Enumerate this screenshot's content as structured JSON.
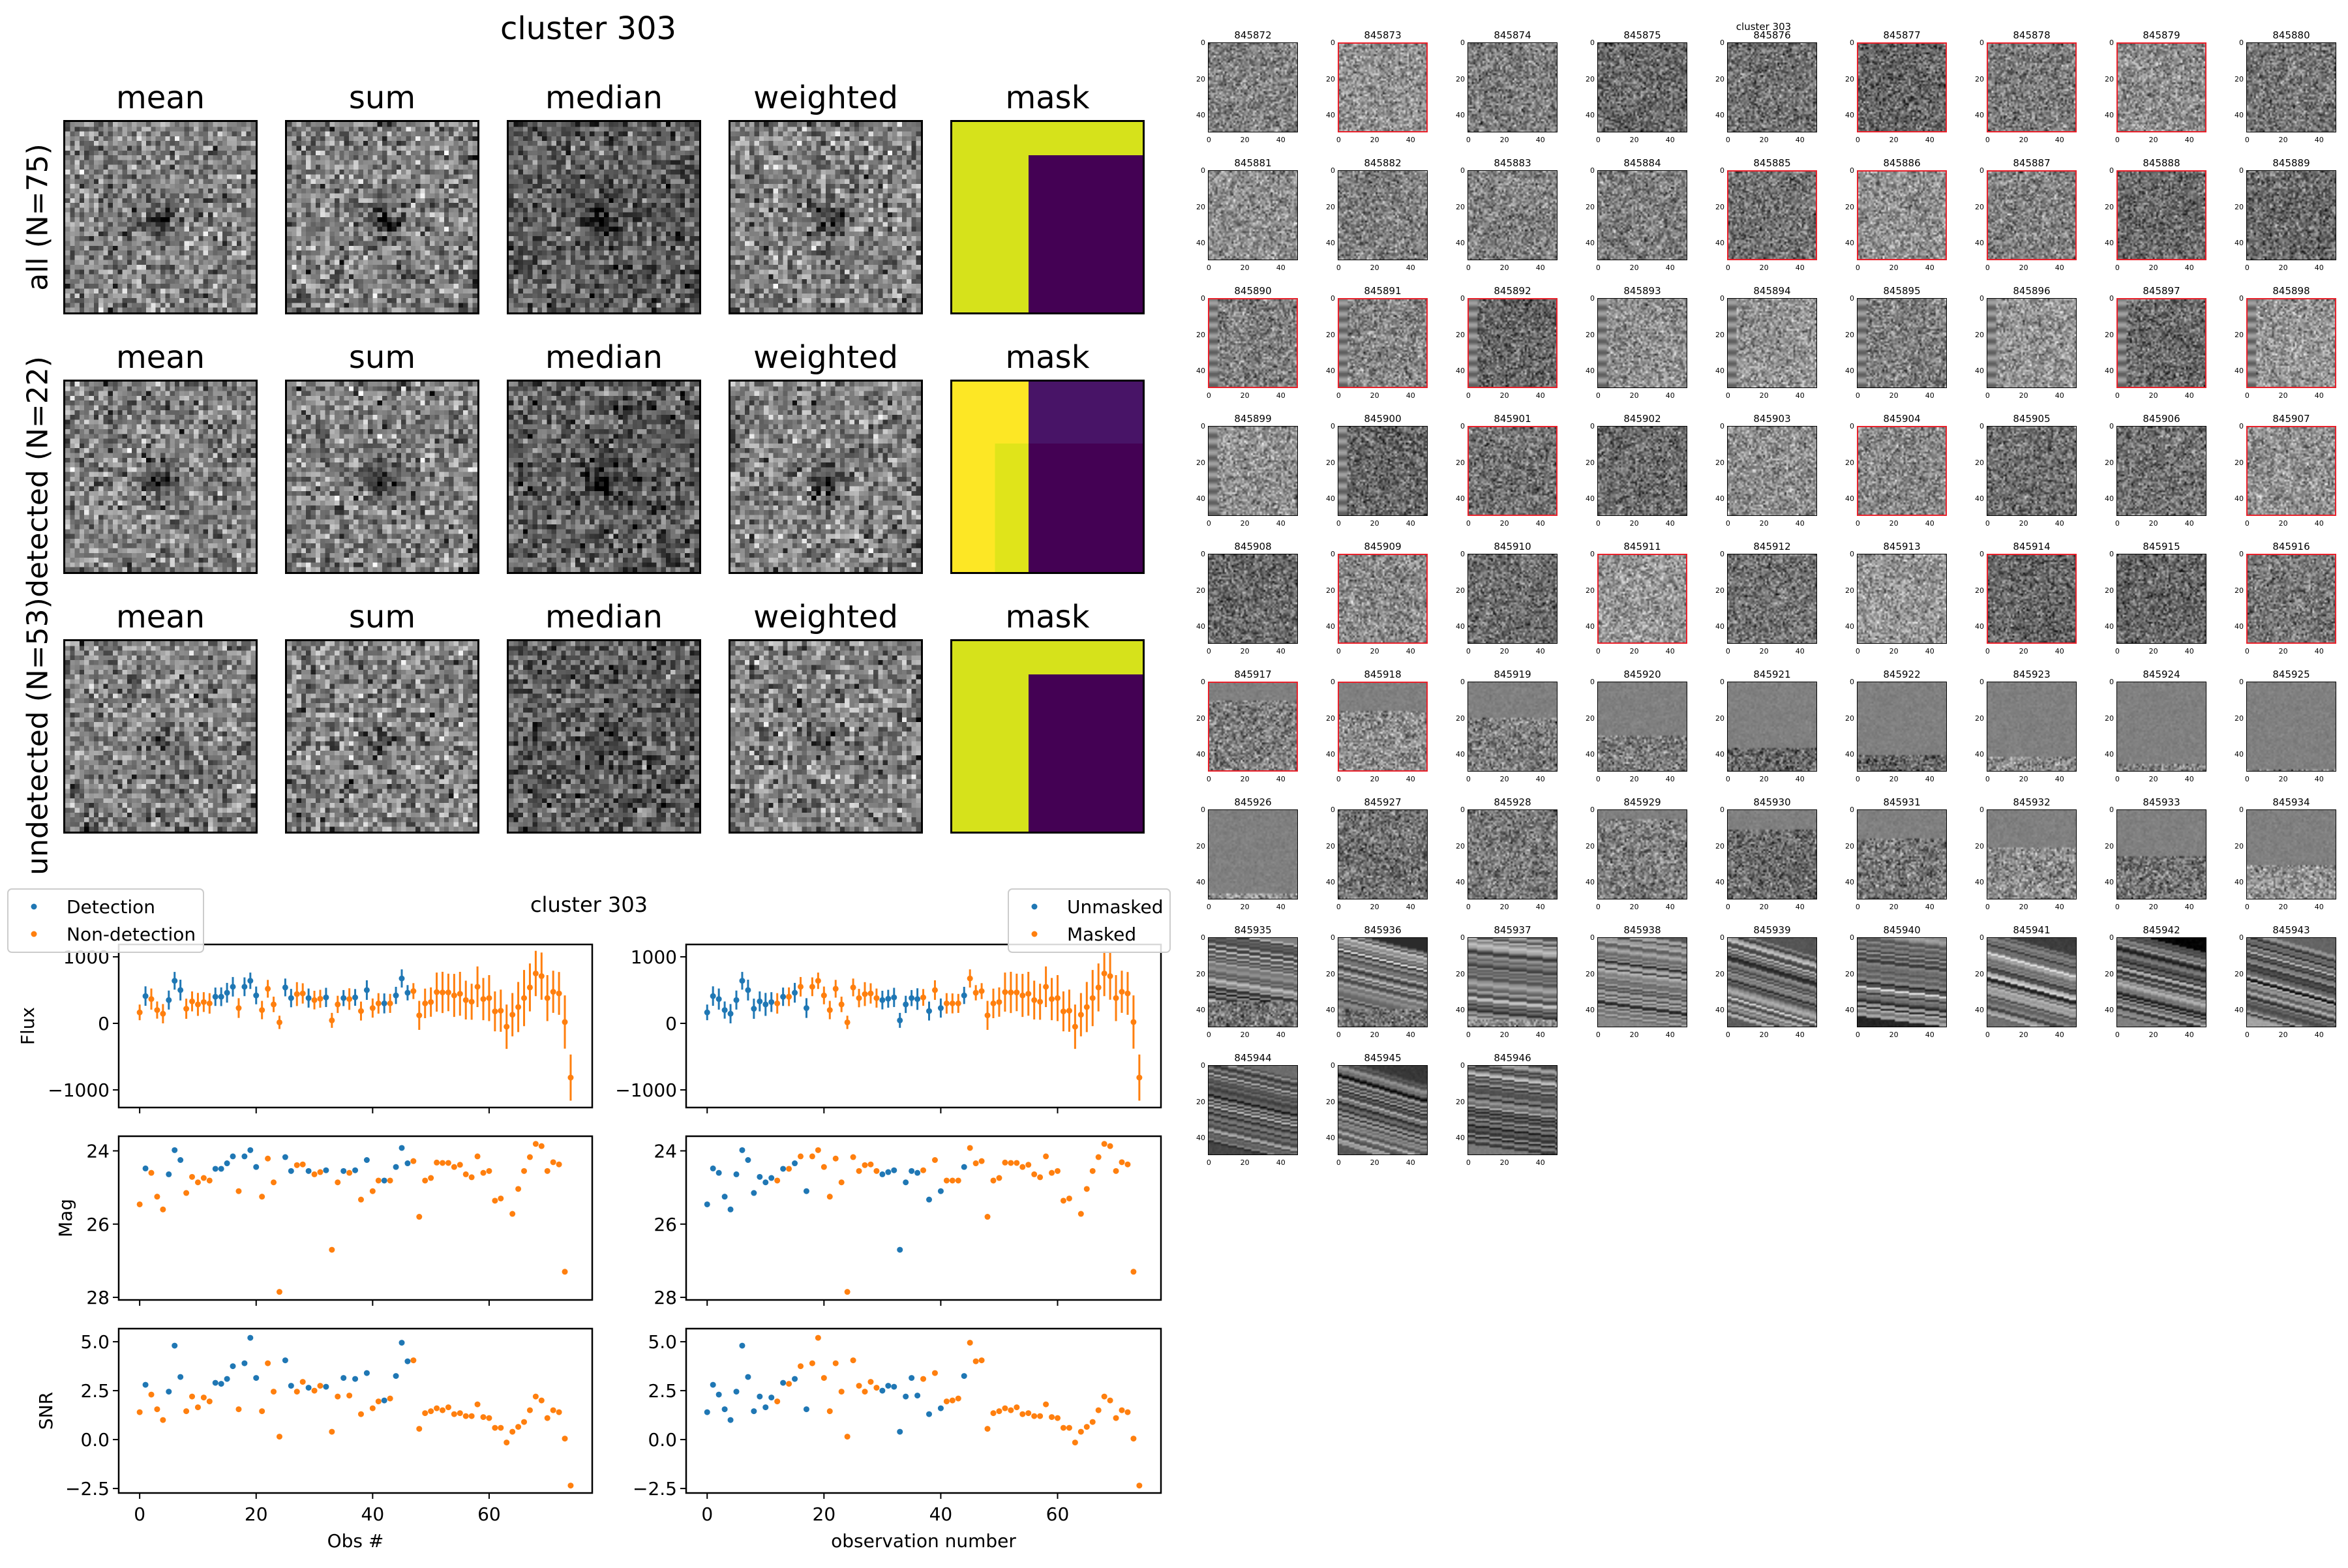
{
  "figure_title": "cluster 303",
  "stack_panels": {
    "columns": [
      "mean",
      "sum",
      "median",
      "weighted",
      "mask"
    ],
    "rows": [
      {
        "label": "all (N=75)"
      },
      {
        "label": "detected (N=22)"
      },
      {
        "label": "undetected (N=53)"
      }
    ]
  },
  "colors": {
    "detection": "#1f77b4",
    "non_detection": "#ff7f0e",
    "mask_yellow": "#d6e21b",
    "mask_bright_yellow": "#fde725",
    "mask_purple": "#440154",
    "mask_light_purple": "#481467",
    "flag_border": "#e8202a"
  },
  "chart_data": {
    "type": "scatter",
    "title": "cluster 303",
    "x": [
      0,
      1,
      2,
      3,
      4,
      5,
      6,
      7,
      8,
      9,
      10,
      11,
      12,
      13,
      14,
      15,
      16,
      17,
      18,
      19,
      20,
      21,
      22,
      23,
      24,
      25,
      26,
      27,
      28,
      29,
      30,
      31,
      32,
      33,
      34,
      35,
      36,
      37,
      38,
      39,
      40,
      41,
      42,
      43,
      44,
      45,
      46,
      47,
      48,
      49,
      50,
      51,
      52,
      53,
      54,
      55,
      56,
      57,
      58,
      59,
      60,
      61,
      62,
      63,
      64,
      65,
      66,
      67,
      68,
      69,
      70,
      71,
      72,
      73,
      74
    ],
    "flux": [
      165,
      410,
      365,
      200,
      145,
      350,
      640,
      500,
      220,
      330,
      285,
      320,
      300,
      400,
      400,
      460,
      550,
      230,
      550,
      640,
      420,
      200,
      520,
      285,
      15,
      540,
      380,
      440,
      450,
      380,
      350,
      370,
      390,
      45,
      285,
      380,
      365,
      390,
      185,
      500,
      230,
      300,
      300,
      300,
      420,
      675,
      460,
      485,
      120,
      300,
      320,
      470,
      465,
      465,
      420,
      445,
      350,
      325,
      550,
      365,
      380,
      180,
      190,
      -50,
      130,
      245,
      380,
      540,
      750,
      710,
      380,
      475,
      450,
      20,
      -815
    ],
    "snr": [
      1.4,
      2.8,
      2.3,
      1.55,
      1.0,
      2.45,
      4.8,
      3.2,
      1.45,
      2.2,
      1.65,
      2.15,
      1.95,
      2.9,
      2.85,
      3.1,
      3.75,
      1.55,
      3.9,
      5.2,
      3.15,
      1.45,
      3.9,
      2.45,
      0.15,
      4.05,
      2.75,
      2.45,
      2.95,
      2.65,
      2.5,
      2.75,
      2.7,
      0.4,
      2.2,
      3.15,
      2.25,
      3.1,
      1.3,
      3.4,
      1.6,
      1.95,
      2.0,
      2.1,
      3.25,
      4.95,
      4.0,
      4.05,
      0.55,
      1.35,
      1.45,
      1.6,
      1.5,
      1.65,
      1.3,
      1.35,
      1.2,
      1.2,
      1.8,
      1.15,
      1.1,
      0.6,
      0.6,
      -0.15,
      0.4,
      0.65,
      0.9,
      1.5,
      2.2,
      2.0,
      1.1,
      1.5,
      1.4,
      0.05,
      -2.35
    ],
    "mag": [
      25.46,
      24.48,
      24.6,
      25.25,
      25.6,
      24.64,
      23.98,
      24.25,
      25.15,
      24.71,
      24.86,
      24.74,
      24.81,
      24.49,
      24.49,
      24.34,
      24.15,
      25.1,
      24.15,
      23.98,
      24.44,
      25.25,
      24.21,
      24.86,
      27.85,
      24.17,
      24.55,
      24.39,
      24.37,
      24.55,
      24.64,
      24.58,
      24.53,
      26.7,
      24.86,
      24.55,
      24.6,
      24.53,
      25.33,
      24.25,
      25.1,
      24.81,
      24.81,
      24.81,
      24.44,
      23.92,
      24.34,
      24.28,
      25.8,
      24.81,
      24.74,
      24.32,
      24.33,
      24.33,
      24.44,
      24.38,
      24.64,
      24.72,
      24.15,
      24.6,
      24.55,
      25.36,
      25.3,
      null,
      25.72,
      25.04,
      24.55,
      24.17,
      23.81,
      23.87,
      24.55,
      24.31,
      24.37,
      27.3,
      null
    ],
    "detected_indices": [
      1,
      5,
      6,
      7,
      13,
      14,
      15,
      16,
      18,
      19,
      20,
      25,
      26,
      29,
      32,
      35,
      37,
      39,
      42,
      44,
      45,
      46
    ],
    "unmasked_indices": [
      0,
      1,
      2,
      3,
      4,
      5,
      6,
      7,
      8,
      9,
      10,
      11,
      13,
      15,
      17,
      30,
      31,
      32,
      33,
      34,
      35,
      36,
      38,
      40,
      44
    ],
    "xlim": [
      -3.6,
      77.7
    ],
    "xticks": [
      0,
      20,
      40,
      60
    ],
    "panels": [
      {
        "key": "flux",
        "ylabel": "Flux",
        "ylim": [
          -1265,
          1186
        ],
        "yticks": [
          1000,
          0,
          -1000
        ],
        "ytick_labels": [
          "1000",
          "0",
          "−1000"
        ],
        "errorbars": true
      },
      {
        "key": "mag",
        "ylabel": "Mag",
        "ylim": [
          28.07,
          23.6
        ],
        "yticks": [
          24,
          26,
          28
        ],
        "ytick_labels": [
          "24",
          "26",
          "28"
        ],
        "inverted": true
      },
      {
        "key": "snr",
        "ylabel": "SNR",
        "ylim": [
          -2.73,
          5.67
        ],
        "yticks": [
          5,
          2.5,
          0,
          -2.5
        ],
        "ytick_labels": [
          "5.0",
          "2.5",
          "0.0",
          "−2.5"
        ]
      }
    ],
    "columns": [
      {
        "xlabel": "Obs #",
        "split": "detected_indices",
        "legend": [
          "Detection",
          "Non-detection"
        ],
        "legend_loc": "upper-left-outside"
      },
      {
        "xlabel": "observation number",
        "split": "unmasked_indices",
        "legend": [
          "Unmasked",
          "Masked"
        ],
        "legend_loc": "upper-right-outside"
      }
    ]
  },
  "thumbnails": {
    "title": "cluster 303",
    "ticks": [
      "0",
      "20",
      "40"
    ],
    "ids": [
      "845872",
      "845873",
      "845874",
      "845875",
      "845876",
      "845877",
      "845878",
      "845879",
      "845880",
      "845881",
      "845882",
      "845883",
      "845884",
      "845885",
      "845886",
      "845887",
      "845888",
      "845889",
      "845890",
      "845891",
      "845892",
      "845893",
      "845894",
      "845895",
      "845896",
      "845897",
      "845898",
      "845899",
      "845900",
      "845901",
      "845902",
      "845903",
      "845904",
      "845905",
      "845906",
      "845907",
      "845908",
      "845909",
      "845910",
      "845911",
      "845912",
      "845913",
      "845914",
      "845915",
      "845916",
      "845917",
      "845918",
      "845919",
      "845920",
      "845921",
      "845922",
      "845923",
      "845924",
      "845925",
      "845926",
      "845927",
      "845928",
      "845929",
      "845930",
      "845931",
      "845932",
      "845933",
      "845934",
      "845935",
      "845936",
      "845937",
      "845938",
      "845939",
      "845940",
      "845941",
      "845942",
      "845943",
      "845944",
      "845945",
      "845946"
    ],
    "flagged": [
      "845873",
      "845877",
      "845878",
      "845879",
      "845885",
      "845886",
      "845887",
      "845888",
      "845890",
      "845891",
      "845892",
      "845897",
      "845898",
      "845901",
      "845904",
      "845907",
      "845909",
      "845911",
      "845914",
      "845916",
      "845917",
      "845918"
    ]
  }
}
